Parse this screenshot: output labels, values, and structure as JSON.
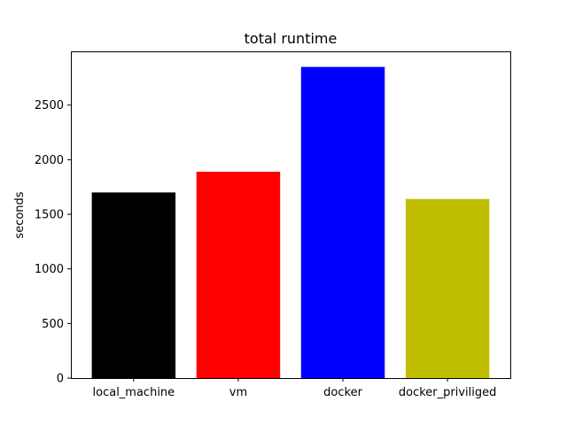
{
  "chart_data": {
    "type": "bar",
    "title": "total runtime",
    "xlabel": "",
    "ylabel": "seconds",
    "categories": [
      "local_machine",
      "vm",
      "docker",
      "docker_priviliged"
    ],
    "values": [
      1700,
      1890,
      2850,
      1640
    ],
    "colors": [
      "#000000",
      "#ff0000",
      "#0000ff",
      "#bfbf00"
    ],
    "ylim": [
      0,
      2992.5
    ],
    "yticks": [
      0,
      500,
      1000,
      1500,
      2000,
      2500
    ],
    "grid": false,
    "legend": "none"
  }
}
